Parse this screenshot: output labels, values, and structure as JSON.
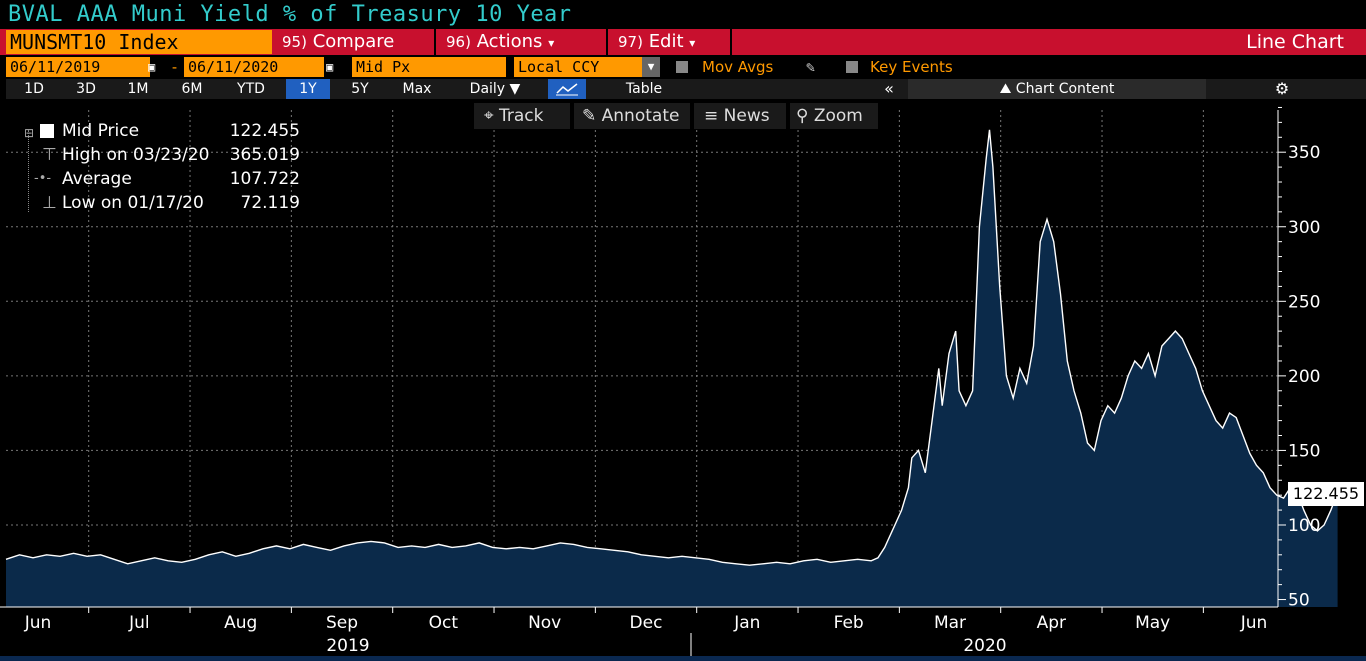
{
  "header": {
    "title": "BVAL AAA Muni Yield % of Treasury 10 Year",
    "ticker": "MUNSMT10 Index",
    "compare_num": "95)",
    "compare": "Compare",
    "actions_num": "96)",
    "actions": "Actions",
    "edit_num": "97)",
    "edit": "Edit",
    "chart_type": "Line Chart"
  },
  "controls": {
    "start_date": "06/11/2019",
    "dash": "-",
    "end_date": "06/11/2020",
    "field": "Mid Px",
    "currency": "Local CCY",
    "mov_avgs": "Mov Avgs",
    "key_events": "Key Events"
  },
  "tabs": [
    "1D",
    "3D",
    "1M",
    "6M",
    "YTD",
    "1Y",
    "5Y",
    "Max",
    "Daily ▼",
    "",
    "Table"
  ],
  "active_tab": "1Y",
  "chart_content": "Chart Content",
  "toolbar": {
    "track": "Track",
    "annotate": "Annotate",
    "news": "News",
    "zoom": "Zoom"
  },
  "legend": {
    "mid_label": "Mid Price",
    "mid_value": "122.455",
    "high_label": "High on 03/23/20",
    "high_value": "365.019",
    "avg_label": "Average",
    "avg_value": "107.722",
    "low_label": "Low on 01/17/20",
    "low_value": "72.119"
  },
  "last_value": "122.455",
  "colors": {
    "accent": "#c8102e",
    "orange": "#ff9900",
    "line": "#ffffff",
    "fill": "#0b2a4a",
    "title": "#33cccc"
  },
  "chart_data": {
    "type": "area",
    "title": "BVAL AAA Muni Yield % of Treasury 10 Year",
    "x_labels": [
      "Jun",
      "Jul",
      "Aug",
      "Sep",
      "Oct",
      "Nov",
      "Dec",
      "Jan",
      "Feb",
      "Mar",
      "Apr",
      "May",
      "Jun"
    ],
    "year_labels": [
      "2019",
      "2020"
    ],
    "y_ticks": [
      50,
      100,
      150,
      200,
      250,
      300,
      350
    ],
    "ylim": [
      45,
      385
    ],
    "grid": true,
    "points": [
      [
        0,
        77
      ],
      [
        4,
        80
      ],
      [
        8,
        78
      ],
      [
        12,
        80
      ],
      [
        16,
        79
      ],
      [
        20,
        81
      ],
      [
        24,
        79
      ],
      [
        28,
        80
      ],
      [
        32,
        77
      ],
      [
        36,
        74
      ],
      [
        40,
        76
      ],
      [
        44,
        78
      ],
      [
        48,
        76
      ],
      [
        52,
        75
      ],
      [
        56,
        77
      ],
      [
        60,
        80
      ],
      [
        64,
        82
      ],
      [
        68,
        79
      ],
      [
        72,
        81
      ],
      [
        76,
        84
      ],
      [
        80,
        86
      ],
      [
        84,
        84
      ],
      [
        88,
        87
      ],
      [
        92,
        85
      ],
      [
        96,
        83
      ],
      [
        100,
        86
      ],
      [
        104,
        88
      ],
      [
        108,
        89
      ],
      [
        112,
        88
      ],
      [
        116,
        85
      ],
      [
        120,
        86
      ],
      [
        124,
        85
      ],
      [
        128,
        87
      ],
      [
        132,
        85
      ],
      [
        136,
        86
      ],
      [
        140,
        88
      ],
      [
        144,
        85
      ],
      [
        148,
        84
      ],
      [
        152,
        85
      ],
      [
        156,
        84
      ],
      [
        160,
        86
      ],
      [
        164,
        88
      ],
      [
        168,
        87
      ],
      [
        172,
        85
      ],
      [
        176,
        84
      ],
      [
        180,
        83
      ],
      [
        184,
        82
      ],
      [
        188,
        80
      ],
      [
        192,
        79
      ],
      [
        196,
        78
      ],
      [
        200,
        79
      ],
      [
        204,
        78
      ],
      [
        208,
        77
      ],
      [
        212,
        75
      ],
      [
        216,
        74
      ],
      [
        220,
        73
      ],
      [
        224,
        74
      ],
      [
        228,
        75
      ],
      [
        232,
        74
      ],
      [
        236,
        76
      ],
      [
        240,
        77
      ],
      [
        244,
        75
      ],
      [
        248,
        76
      ],
      [
        252,
        77
      ],
      [
        256,
        76
      ],
      [
        258,
        78
      ],
      [
        260,
        85
      ],
      [
        262,
        95
      ],
      [
        263,
        100
      ],
      [
        265,
        110
      ],
      [
        267,
        125
      ],
      [
        268,
        145
      ],
      [
        270,
        150
      ],
      [
        272,
        135
      ],
      [
        274,
        170
      ],
      [
        276,
        205
      ],
      [
        277,
        180
      ],
      [
        279,
        215
      ],
      [
        281,
        230
      ],
      [
        282,
        190
      ],
      [
        284,
        180
      ],
      [
        286,
        190
      ],
      [
        288,
        300
      ],
      [
        290,
        345
      ],
      [
        291,
        365
      ],
      [
        292,
        340
      ],
      [
        294,
        260
      ],
      [
        296,
        200
      ],
      [
        298,
        185
      ],
      [
        300,
        205
      ],
      [
        302,
        195
      ],
      [
        304,
        220
      ],
      [
        306,
        290
      ],
      [
        308,
        305
      ],
      [
        310,
        290
      ],
      [
        312,
        255
      ],
      [
        314,
        210
      ],
      [
        316,
        190
      ],
      [
        318,
        175
      ],
      [
        320,
        155
      ],
      [
        322,
        150
      ],
      [
        324,
        170
      ],
      [
        326,
        180
      ],
      [
        328,
        175
      ],
      [
        330,
        185
      ],
      [
        332,
        200
      ],
      [
        334,
        210
      ],
      [
        336,
        205
      ],
      [
        338,
        215
      ],
      [
        340,
        200
      ],
      [
        342,
        220
      ],
      [
        344,
        225
      ],
      [
        346,
        230
      ],
      [
        348,
        225
      ],
      [
        350,
        215
      ],
      [
        352,
        205
      ],
      [
        354,
        190
      ],
      [
        356,
        180
      ],
      [
        358,
        170
      ],
      [
        360,
        165
      ],
      [
        362,
        175
      ],
      [
        364,
        172
      ],
      [
        366,
        160
      ],
      [
        368,
        148
      ],
      [
        370,
        140
      ],
      [
        372,
        135
      ],
      [
        374,
        125
      ],
      [
        376,
        120
      ],
      [
        378,
        118
      ],
      [
        380,
        125
      ],
      [
        382,
        122
      ],
      [
        384,
        110
      ],
      [
        386,
        100
      ],
      [
        388,
        96
      ],
      [
        390,
        100
      ],
      [
        392,
        110
      ],
      [
        394,
        122
      ]
    ],
    "x_total_days": 366
  }
}
